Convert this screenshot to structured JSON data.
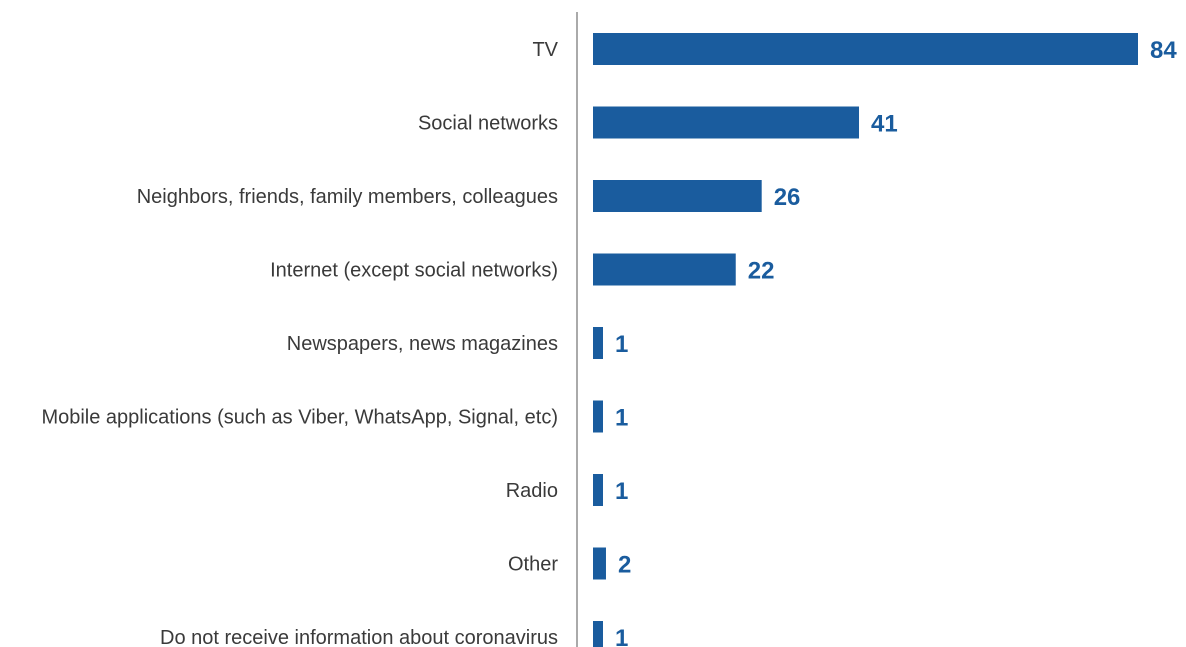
{
  "colors": {
    "bar": "#1a5c9e",
    "value_label": "#1a5c9e",
    "axis": "#555555",
    "category_label": "#3a3a3a"
  },
  "chart_data": {
    "type": "bar",
    "orientation": "horizontal",
    "categories": [
      "TV",
      "Social networks",
      "Neighbors, friends, family members, colleagues",
      "Internet (except social networks)",
      "Newspapers, news magazines",
      "Mobile applications (such as Viber, WhatsApp, Signal, etc)",
      "Radio",
      "Other",
      "Do not receive information about coronavirus"
    ],
    "values": [
      84,
      41,
      26,
      22,
      1,
      1,
      1,
      2,
      1
    ],
    "value_labels": [
      "84",
      "41",
      "26",
      "22",
      "1",
      "1",
      "1",
      "2",
      "1"
    ],
    "xlim": [
      0,
      84
    ],
    "grid": false,
    "legend": "none"
  }
}
